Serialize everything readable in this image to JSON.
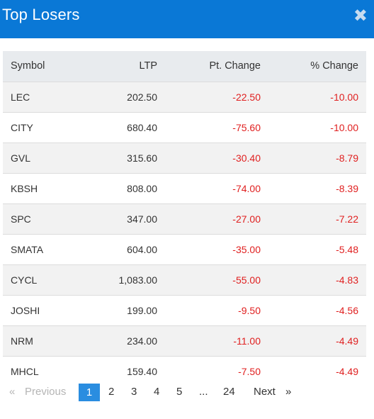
{
  "header": {
    "title": "Top Losers",
    "close_glyph": "✖",
    "close_icon": "close-icon"
  },
  "table": {
    "columns": [
      "Symbol",
      "LTP",
      "Pt. Change",
      "% Change"
    ],
    "rows": [
      {
        "symbol": "LEC",
        "ltp": "202.50",
        "pt_change": "-22.50",
        "pct_change": "-10.00"
      },
      {
        "symbol": "CITY",
        "ltp": "680.40",
        "pt_change": "-75.60",
        "pct_change": "-10.00"
      },
      {
        "symbol": "GVL",
        "ltp": "315.60",
        "pt_change": "-30.40",
        "pct_change": "-8.79"
      },
      {
        "symbol": "KBSH",
        "ltp": "808.00",
        "pt_change": "-74.00",
        "pct_change": "-8.39"
      },
      {
        "symbol": "SPC",
        "ltp": "347.00",
        "pt_change": "-27.00",
        "pct_change": "-7.22"
      },
      {
        "symbol": "SMATA",
        "ltp": "604.00",
        "pt_change": "-35.00",
        "pct_change": "-5.48"
      },
      {
        "symbol": "CYCL",
        "ltp": "1,083.00",
        "pt_change": "-55.00",
        "pct_change": "-4.83"
      },
      {
        "symbol": "JOSHI",
        "ltp": "199.00",
        "pt_change": "-9.50",
        "pct_change": "-4.56"
      },
      {
        "symbol": "NRM",
        "ltp": "234.00",
        "pt_change": "-11.00",
        "pct_change": "-4.49"
      },
      {
        "symbol": "MHCL",
        "ltp": "159.40",
        "pt_change": "-7.50",
        "pct_change": "-4.49"
      }
    ]
  },
  "pagination": {
    "prev_arrow": "«",
    "prev_label": "Previous",
    "pages": [
      "1",
      "2",
      "3",
      "4",
      "5",
      "...",
      "24"
    ],
    "active_page": "1",
    "next_label": "Next",
    "next_arrow": "»"
  },
  "colors": {
    "header": "#0a78d6",
    "negative": "#e02020",
    "active_page": "#2a8de0"
  }
}
